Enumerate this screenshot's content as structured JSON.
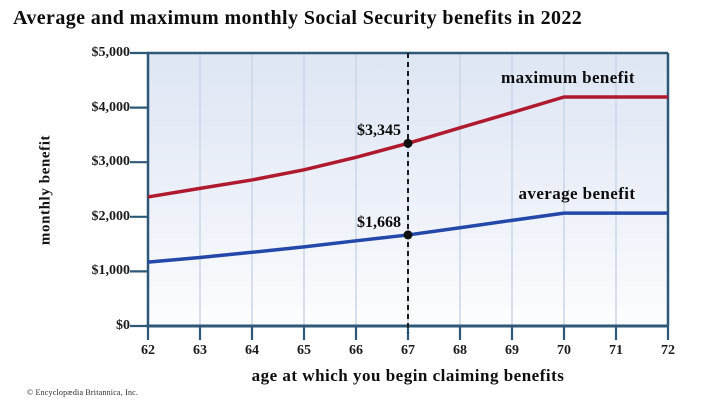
{
  "title": "Average and maximum monthly Social Security benefits in 2022",
  "footer": {
    "copyright": "© Encyclopædia Britannica, Inc."
  },
  "colors": {
    "maximum_line": "#b01a2e",
    "average_line": "#2448aa",
    "axis": "#2e5878",
    "grid": "#ccd6e8",
    "dashed_reference": "#1a1a1a",
    "dot": "#111111",
    "plot_bg_top": "#dee6f4",
    "plot_bg_mid": "#edf1f9",
    "plot_bg_bottom": "#fcfdfe",
    "text": "#0c0c0c"
  },
  "chart_data": {
    "type": "line",
    "title": "Average and maximum monthly Social Security benefits in 2022",
    "xlabel": "age at which you begin claiming benefits",
    "ylabel": "monthly benefit",
    "x": [
      62,
      63,
      64,
      65,
      66,
      67,
      68,
      69,
      70,
      71,
      72
    ],
    "xlim": [
      62,
      72
    ],
    "ylim": [
      0,
      5000
    ],
    "grid": "vertical-only",
    "legend_position": "inline-labels-above-lines",
    "y_ticks": [
      {
        "value": 0,
        "label": "$0"
      },
      {
        "value": 1000,
        "label": "$1,000"
      },
      {
        "value": 2000,
        "label": "$2,000"
      },
      {
        "value": 3000,
        "label": "$3,000"
      },
      {
        "value": 4000,
        "label": "$4,000"
      },
      {
        "value": 5000,
        "label": "$5,000"
      }
    ],
    "x_tick_labels": [
      "62",
      "63",
      "64",
      "65",
      "66",
      "67",
      "68",
      "69",
      "70",
      "71",
      "72"
    ],
    "series": [
      {
        "name": "maximum benefit",
        "color": "#b01a2e",
        "values": [
          2364,
          2520,
          2675,
          2860,
          3090,
          3345,
          3630,
          3910,
          4194,
          4194,
          4194
        ]
      },
      {
        "name": "average benefit",
        "color": "#2448aa",
        "values": [
          1170,
          1255,
          1350,
          1450,
          1560,
          1668,
          1800,
          1935,
          2068,
          2068,
          2068
        ]
      }
    ],
    "reference_line": {
      "x": 67,
      "style": "dashed",
      "color": "#1a1a1a"
    },
    "annotations": [
      {
        "x": 67,
        "y": 3345,
        "label": "$3,345",
        "series": "maximum benefit"
      },
      {
        "x": 67,
        "y": 1668,
        "label": "$1,668",
        "series": "average benefit"
      }
    ]
  }
}
